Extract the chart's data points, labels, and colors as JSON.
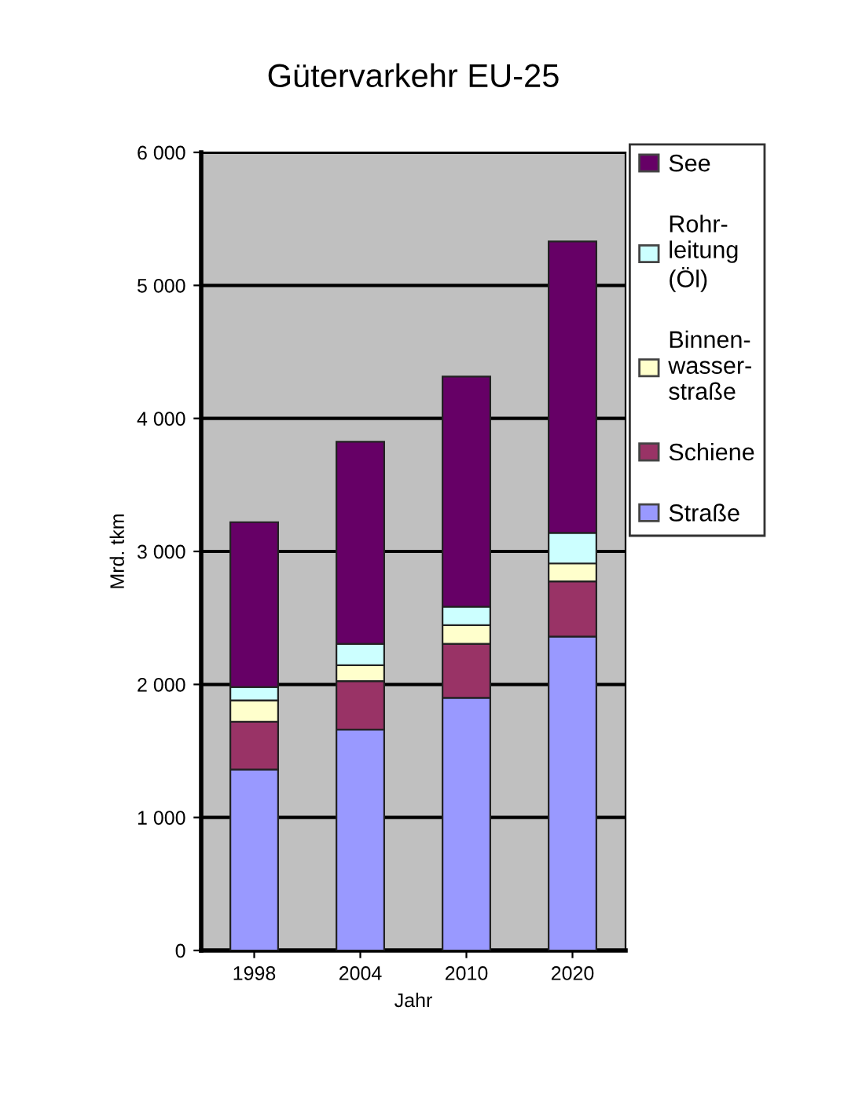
{
  "chart_data": {
    "type": "bar",
    "title": "Gütervarkehr EU-25",
    "xlabel": "Jahr",
    "ylabel": "Mrd. tkm",
    "categories": [
      "1998",
      "2004",
      "2010",
      "2020"
    ],
    "stacked": true,
    "series": [
      {
        "name": "Straße",
        "color": "#9999ff",
        "values": [
          1360,
          1660,
          1900,
          2360
        ]
      },
      {
        "name": "Schiene",
        "color": "#993366",
        "values": [
          360,
          365,
          405,
          415
        ]
      },
      {
        "name": "Binnen-\nwasser-\nstraße",
        "color": "#ffffcc",
        "values": [
          160,
          120,
          140,
          135
        ]
      },
      {
        "name": "Rohr-\nleitung\n(Öl)",
        "color": "#ccffff",
        "values": [
          100,
          160,
          140,
          230
        ]
      },
      {
        "name": "See",
        "color": "#660066",
        "values": [
          1240,
          1520,
          1730,
          2190
        ]
      }
    ],
    "ylim": [
      0,
      6000
    ],
    "yticks": [
      {
        "value": 0,
        "label": "0"
      },
      {
        "value": 1000,
        "label": "1 000"
      },
      {
        "value": 2000,
        "label": "2 000"
      },
      {
        "value": 3000,
        "label": "3 000"
      },
      {
        "value": 4000,
        "label": "4 000"
      },
      {
        "value": 5000,
        "label": "5 000"
      },
      {
        "value": 6000,
        "label": "6 000"
      }
    ],
    "grid": "y",
    "legend": "right"
  }
}
